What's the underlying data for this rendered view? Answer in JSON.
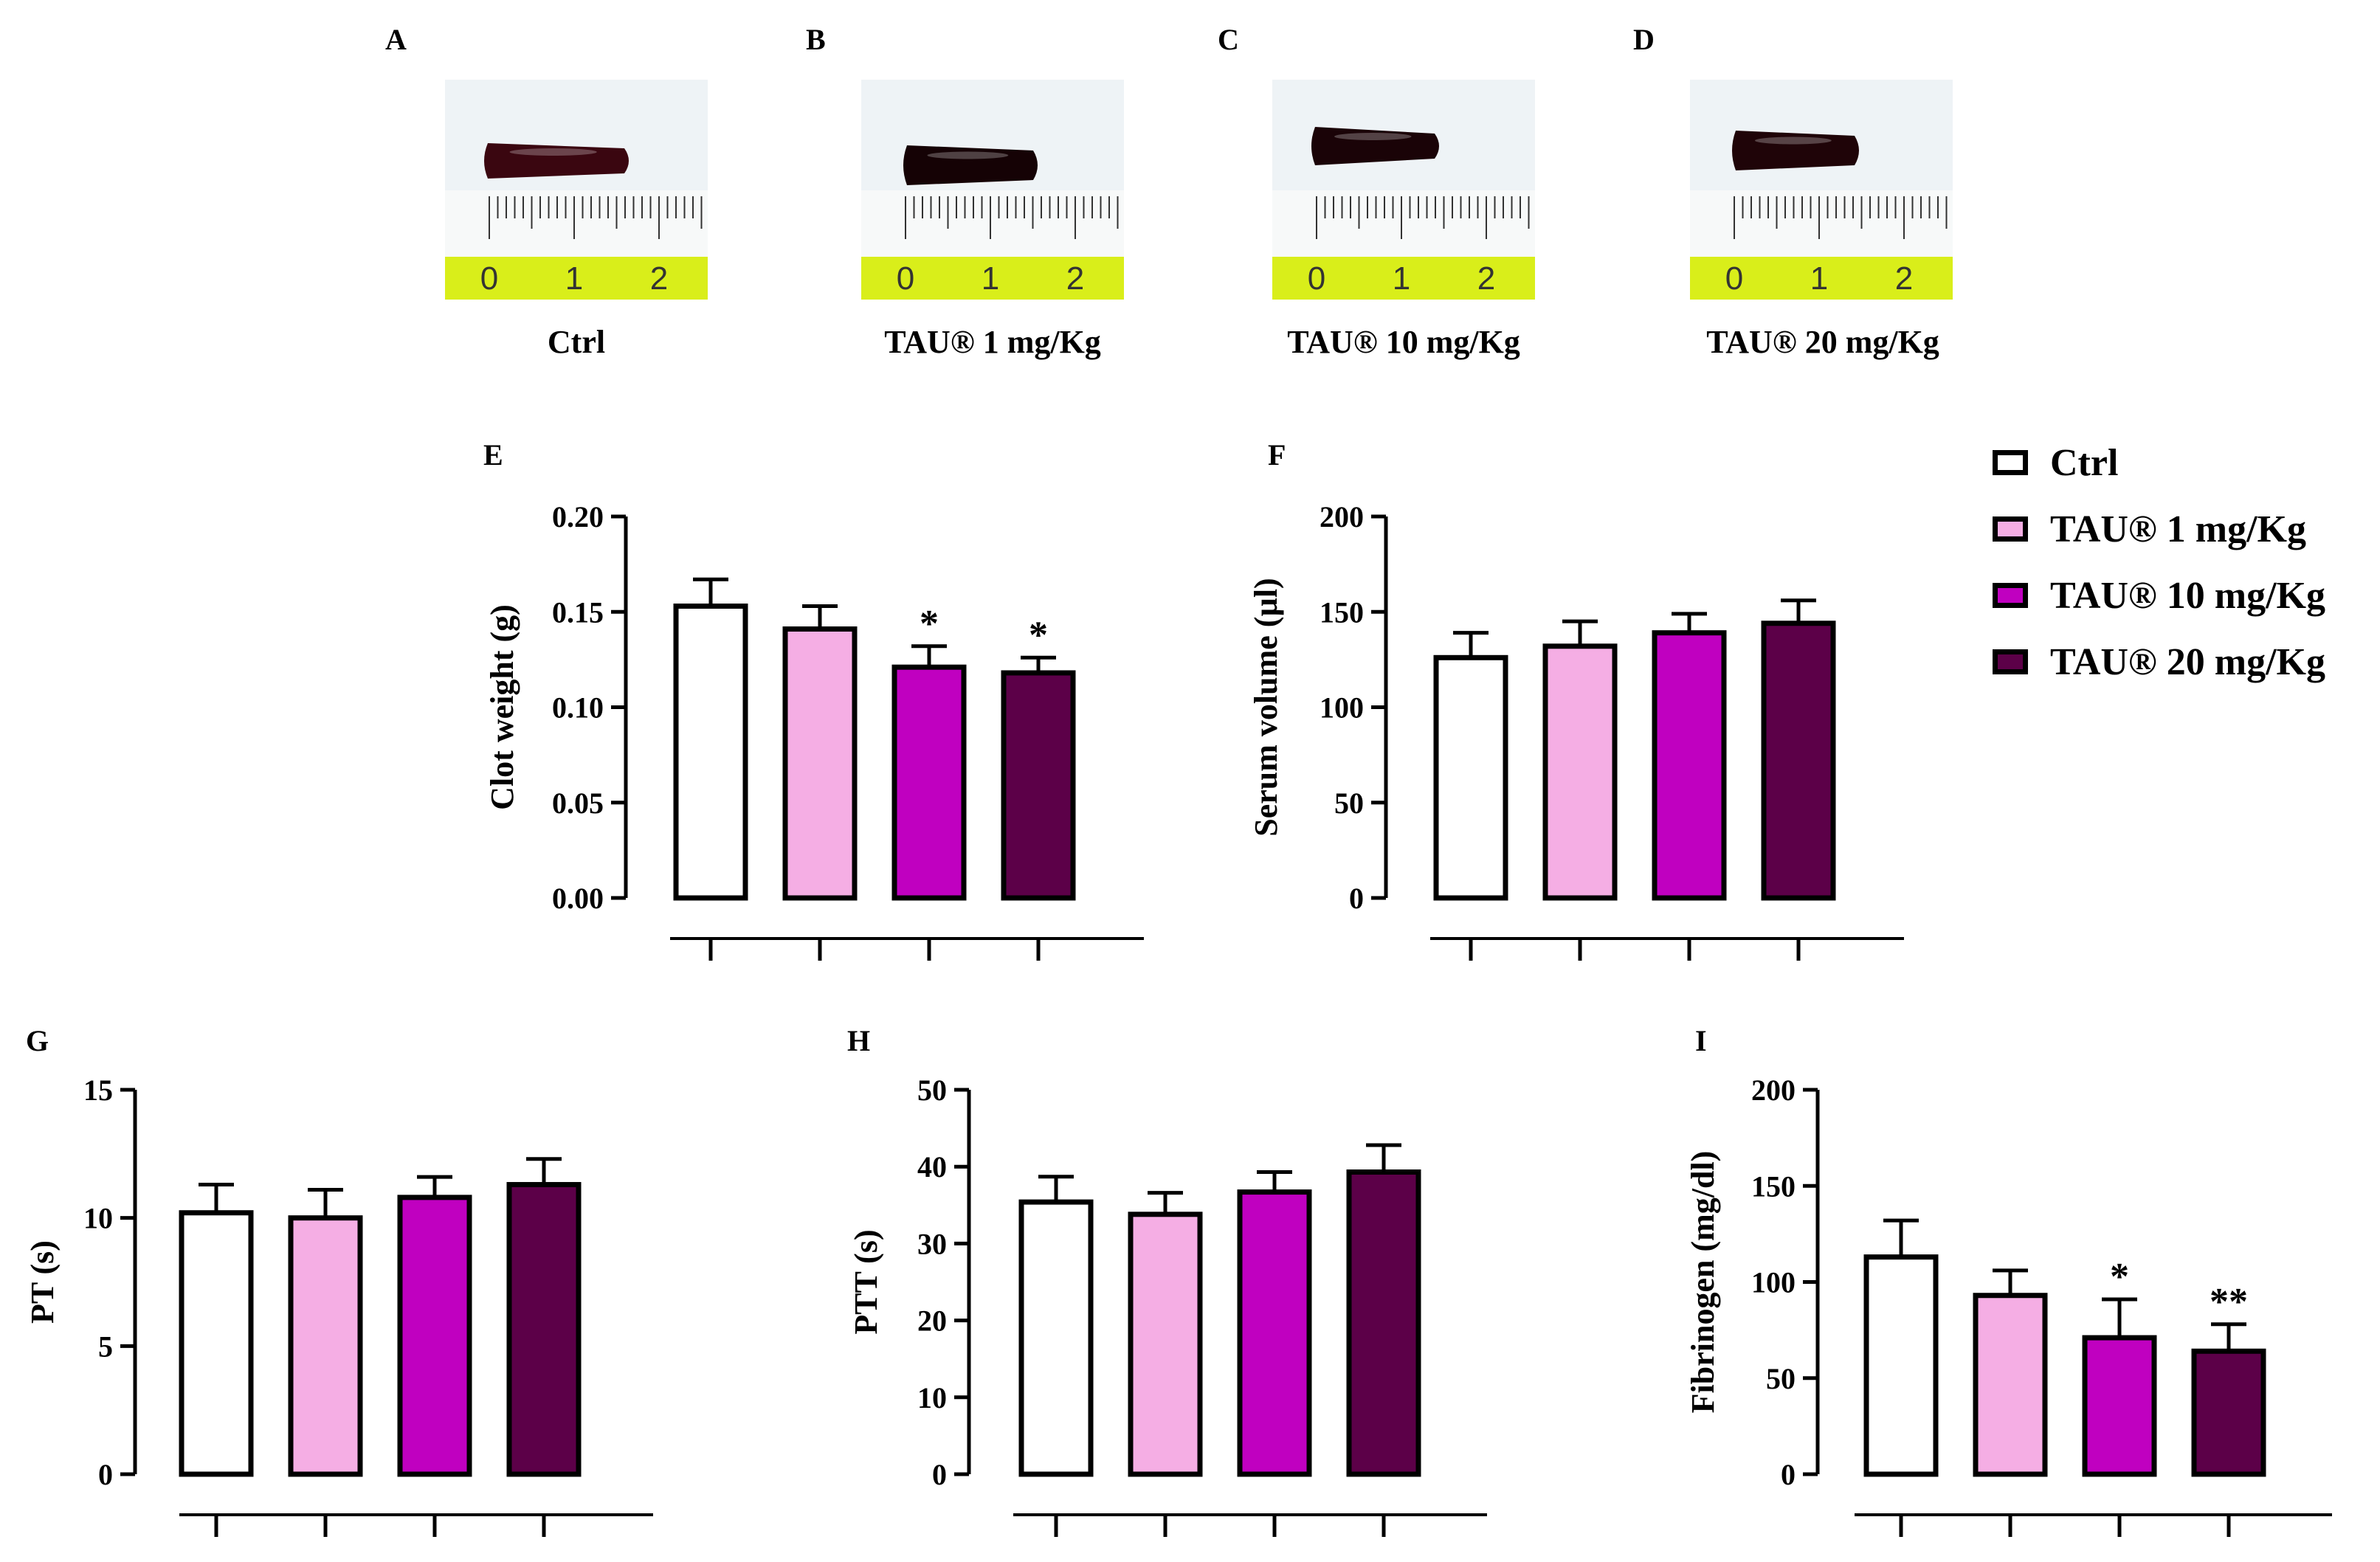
{
  "photos": [
    {
      "letter": "A",
      "caption": "Ctrl",
      "clot_color": "#3a0610",
      "ruler_digits": [
        "0",
        "1",
        "2"
      ]
    },
    {
      "letter": "B",
      "caption": "TAU® 1 mg/Kg",
      "clot_color": "#150205",
      "ruler_digits": [
        "0",
        "1",
        "2"
      ]
    },
    {
      "letter": "C",
      "caption": "TAU® 10 mg/Kg",
      "clot_color": "#1a0307",
      "ruler_digits": [
        "0",
        "1",
        "2"
      ]
    },
    {
      "letter": "D",
      "caption": "TAU® 20 mg/Kg",
      "clot_color": "#1f0408",
      "ruler_digits": [
        "0",
        "1",
        "2"
      ]
    }
  ],
  "legend": [
    {
      "label": "Ctrl",
      "color": "#ffffff"
    },
    {
      "label": "TAU® 1 mg/Kg",
      "color": "#f5aee4"
    },
    {
      "label": "TAU® 10 mg/Kg",
      "color": "#c000c0"
    },
    {
      "label": "TAU® 20 mg/Kg",
      "color": "#5c0048"
    }
  ],
  "chart_data": [
    {
      "panel": "E",
      "type": "bar",
      "ylabel": "Clot weight (g)",
      "ylim": [
        0,
        0.2
      ],
      "yticks": [
        "0.00",
        "0.05",
        "0.10",
        "0.15",
        "0.20"
      ],
      "values": [
        0.153,
        0.141,
        0.121,
        0.118
      ],
      "errors": [
        0.014,
        0.012,
        0.011,
        0.008
      ],
      "annotations": [
        "",
        "",
        "*",
        "*"
      ]
    },
    {
      "panel": "F",
      "type": "bar",
      "ylabel": "Serum volume (µl)",
      "ylim": [
        0,
        200
      ],
      "yticks": [
        "0",
        "50",
        "100",
        "150",
        "200"
      ],
      "values": [
        126,
        132,
        139,
        144
      ],
      "errors": [
        13,
        13,
        10,
        12
      ],
      "annotations": [
        "",
        "",
        "",
        ""
      ]
    },
    {
      "panel": "G",
      "type": "bar",
      "ylabel": "PT (s)",
      "ylim": [
        0,
        15
      ],
      "yticks": [
        "0",
        "5",
        "10",
        "15"
      ],
      "values": [
        10.2,
        10.0,
        10.8,
        11.3
      ],
      "errors": [
        1.1,
        1.1,
        0.8,
        1.0
      ],
      "annotations": [
        "",
        "",
        "",
        ""
      ]
    },
    {
      "panel": "H",
      "type": "bar",
      "ylabel": "PTT (s)",
      "ylim": [
        0,
        50
      ],
      "yticks": [
        "0",
        "10",
        "20",
        "30",
        "40",
        "50"
      ],
      "values": [
        35.4,
        33.8,
        36.7,
        39.3
      ],
      "errors": [
        3.3,
        2.8,
        2.6,
        3.5
      ],
      "annotations": [
        "",
        "",
        "",
        ""
      ]
    },
    {
      "panel": "I",
      "type": "bar",
      "ylabel": "Fibrinogen (mg/dl)",
      "ylim": [
        0,
        200
      ],
      "yticks": [
        "0",
        "50",
        "100",
        "150",
        "200"
      ],
      "values": [
        113,
        93,
        71,
        64
      ],
      "errors": [
        19,
        13,
        20,
        14
      ],
      "annotations": [
        "",
        "",
        "*",
        "**"
      ]
    }
  ]
}
